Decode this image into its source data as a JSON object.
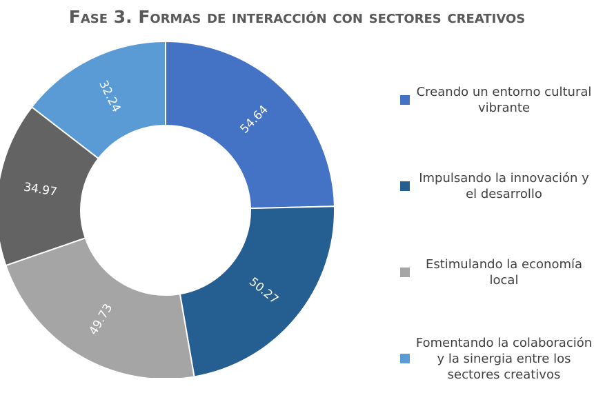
{
  "chart_data": {
    "type": "donut",
    "title": "Fase 3. Formas de interacción con sectores creativos",
    "categories": [
      "Creando un entorno cultural vibrante",
      "Impulsando la innovación y el desarrollo",
      "Estimulando la economía local",
      null,
      "Fomentando la colaboración y la sinergia entre los sectores creativos"
    ],
    "values": [
      54.64,
      50.27,
      49.73,
      34.97,
      32.24
    ],
    "colors": [
      "#4472c4",
      "#255e91",
      "#a5a5a5",
      "#636363",
      "#5b9bd5"
    ],
    "legend": "right"
  }
}
